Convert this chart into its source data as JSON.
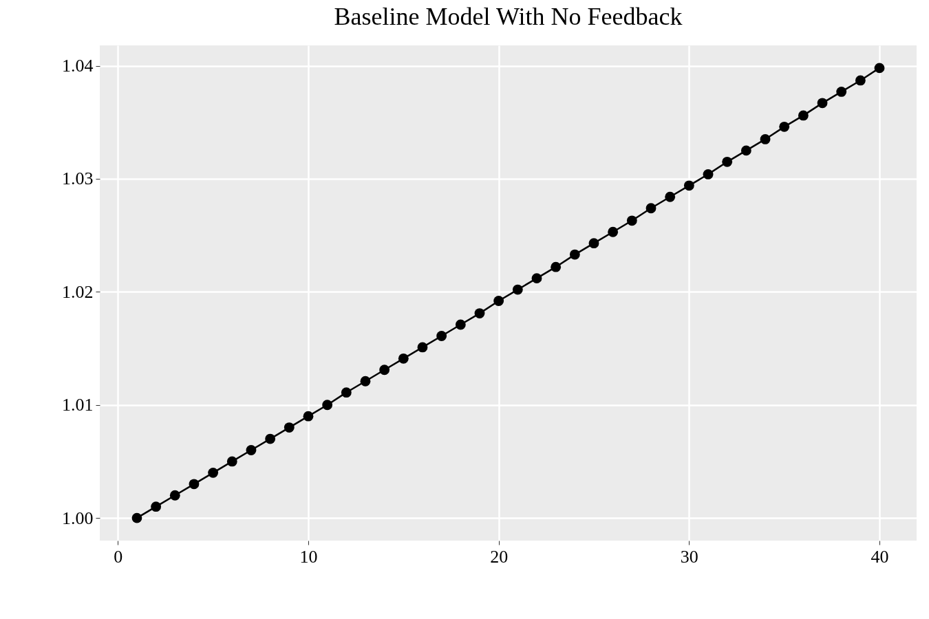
{
  "chart_data": {
    "type": "line",
    "title": "Baseline Model With No Feedback",
    "x": [
      1,
      2,
      3,
      4,
      5,
      6,
      7,
      8,
      9,
      10,
      11,
      12,
      13,
      14,
      15,
      16,
      17,
      18,
      19,
      20,
      21,
      22,
      23,
      24,
      25,
      26,
      27,
      28,
      29,
      30,
      31,
      32,
      33,
      34,
      35,
      36,
      37,
      38,
      39,
      40
    ],
    "series": [
      {
        "color": "#000000",
        "values": [
          1.0,
          1.001,
          1.002,
          1.003,
          1.004,
          1.005,
          1.006,
          1.007,
          1.008,
          1.009,
          1.01,
          1.0111,
          1.0121,
          1.0131,
          1.0141,
          1.0151,
          1.0161,
          1.0171,
          1.0181,
          1.0192,
          1.0202,
          1.0212,
          1.0222,
          1.0233,
          1.0243,
          1.0253,
          1.0263,
          1.0274,
          1.0284,
          1.0294,
          1.0304,
          1.0315,
          1.0325,
          1.0335,
          1.0346,
          1.0356,
          1.0367,
          1.0377,
          1.0387,
          1.0398
        ]
      }
    ],
    "xlim": [
      -0.95,
      41.95
    ],
    "xticks": [
      0,
      10,
      20,
      30,
      40
    ],
    "ylim": [
      0.998,
      1.0418
    ],
    "yticks": [
      {
        "value": 1,
        "label": "1.00"
      },
      {
        "value": 1.01,
        "label": "1.01"
      },
      {
        "value": 1.02,
        "label": "1.02"
      },
      {
        "value": 1.03,
        "label": "1.03"
      },
      {
        "value": 1.04,
        "label": "1.04"
      }
    ],
    "grid": true,
    "marker": "circle",
    "line_style": "solid"
  }
}
